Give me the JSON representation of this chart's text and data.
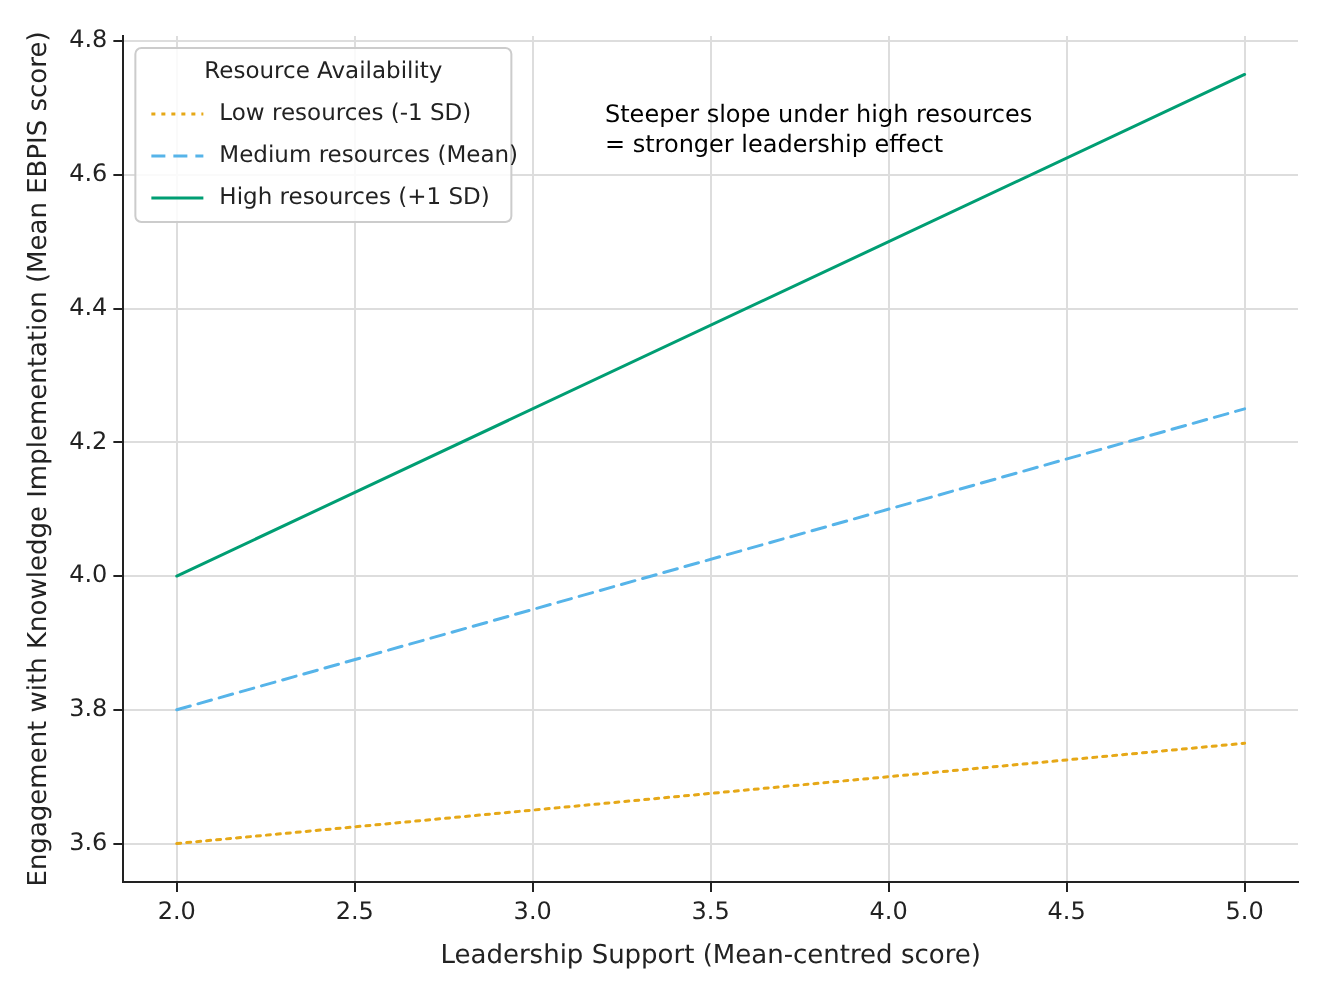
{
  "chart_data": {
    "type": "line",
    "xlabel": "Leadership Support (Mean-centred score)",
    "ylabel": "Engagement with Knowledge Implementation (Mean EBPIS score)",
    "legend_title": "Resource Availability",
    "x": [
      2,
      5
    ],
    "series": [
      {
        "name": "Low resources (-1 SD)",
        "color": "#e6a817",
        "values": [
          3.6,
          3.75
        ],
        "line_style": "dotted"
      },
      {
        "name": "Medium resources (Mean)",
        "color": "#56b4e9",
        "values": [
          3.8,
          4.25
        ],
        "line_style": "dashed"
      },
      {
        "name": "High resources (+1 SD)",
        "color": "#009e73",
        "values": [
          4.0,
          4.75
        ],
        "line_style": "solid"
      }
    ],
    "xlim": [
      1.85,
      5.15
    ],
    "xticks": [
      {
        "value": 2,
        "label": "2.0"
      },
      {
        "value": 2.5,
        "label": "2.5"
      },
      {
        "value": 3,
        "label": "3.0"
      },
      {
        "value": 3.5,
        "label": "3.5"
      },
      {
        "value": 4,
        "label": "4.0"
      },
      {
        "value": 4.5,
        "label": "4.5"
      },
      {
        "value": 5,
        "label": "5.0"
      }
    ],
    "ylim": [
      3.5425,
      4.8075
    ],
    "yticks": [
      {
        "value": 3.6,
        "label": "3.6"
      },
      {
        "value": 3.8,
        "label": "3.8"
      },
      {
        "value": 4,
        "label": "4.0"
      },
      {
        "value": 4.2,
        "label": "4.2"
      },
      {
        "value": 4.4,
        "label": "4.4"
      },
      {
        "value": 4.6,
        "label": "4.6"
      },
      {
        "value": 4.8,
        "label": "4.8"
      }
    ],
    "grid": true,
    "legend": "top left",
    "marker": "none",
    "annotations": [
      "Steeper slope under high resources\n= stronger leadership effect"
    ]
  }
}
